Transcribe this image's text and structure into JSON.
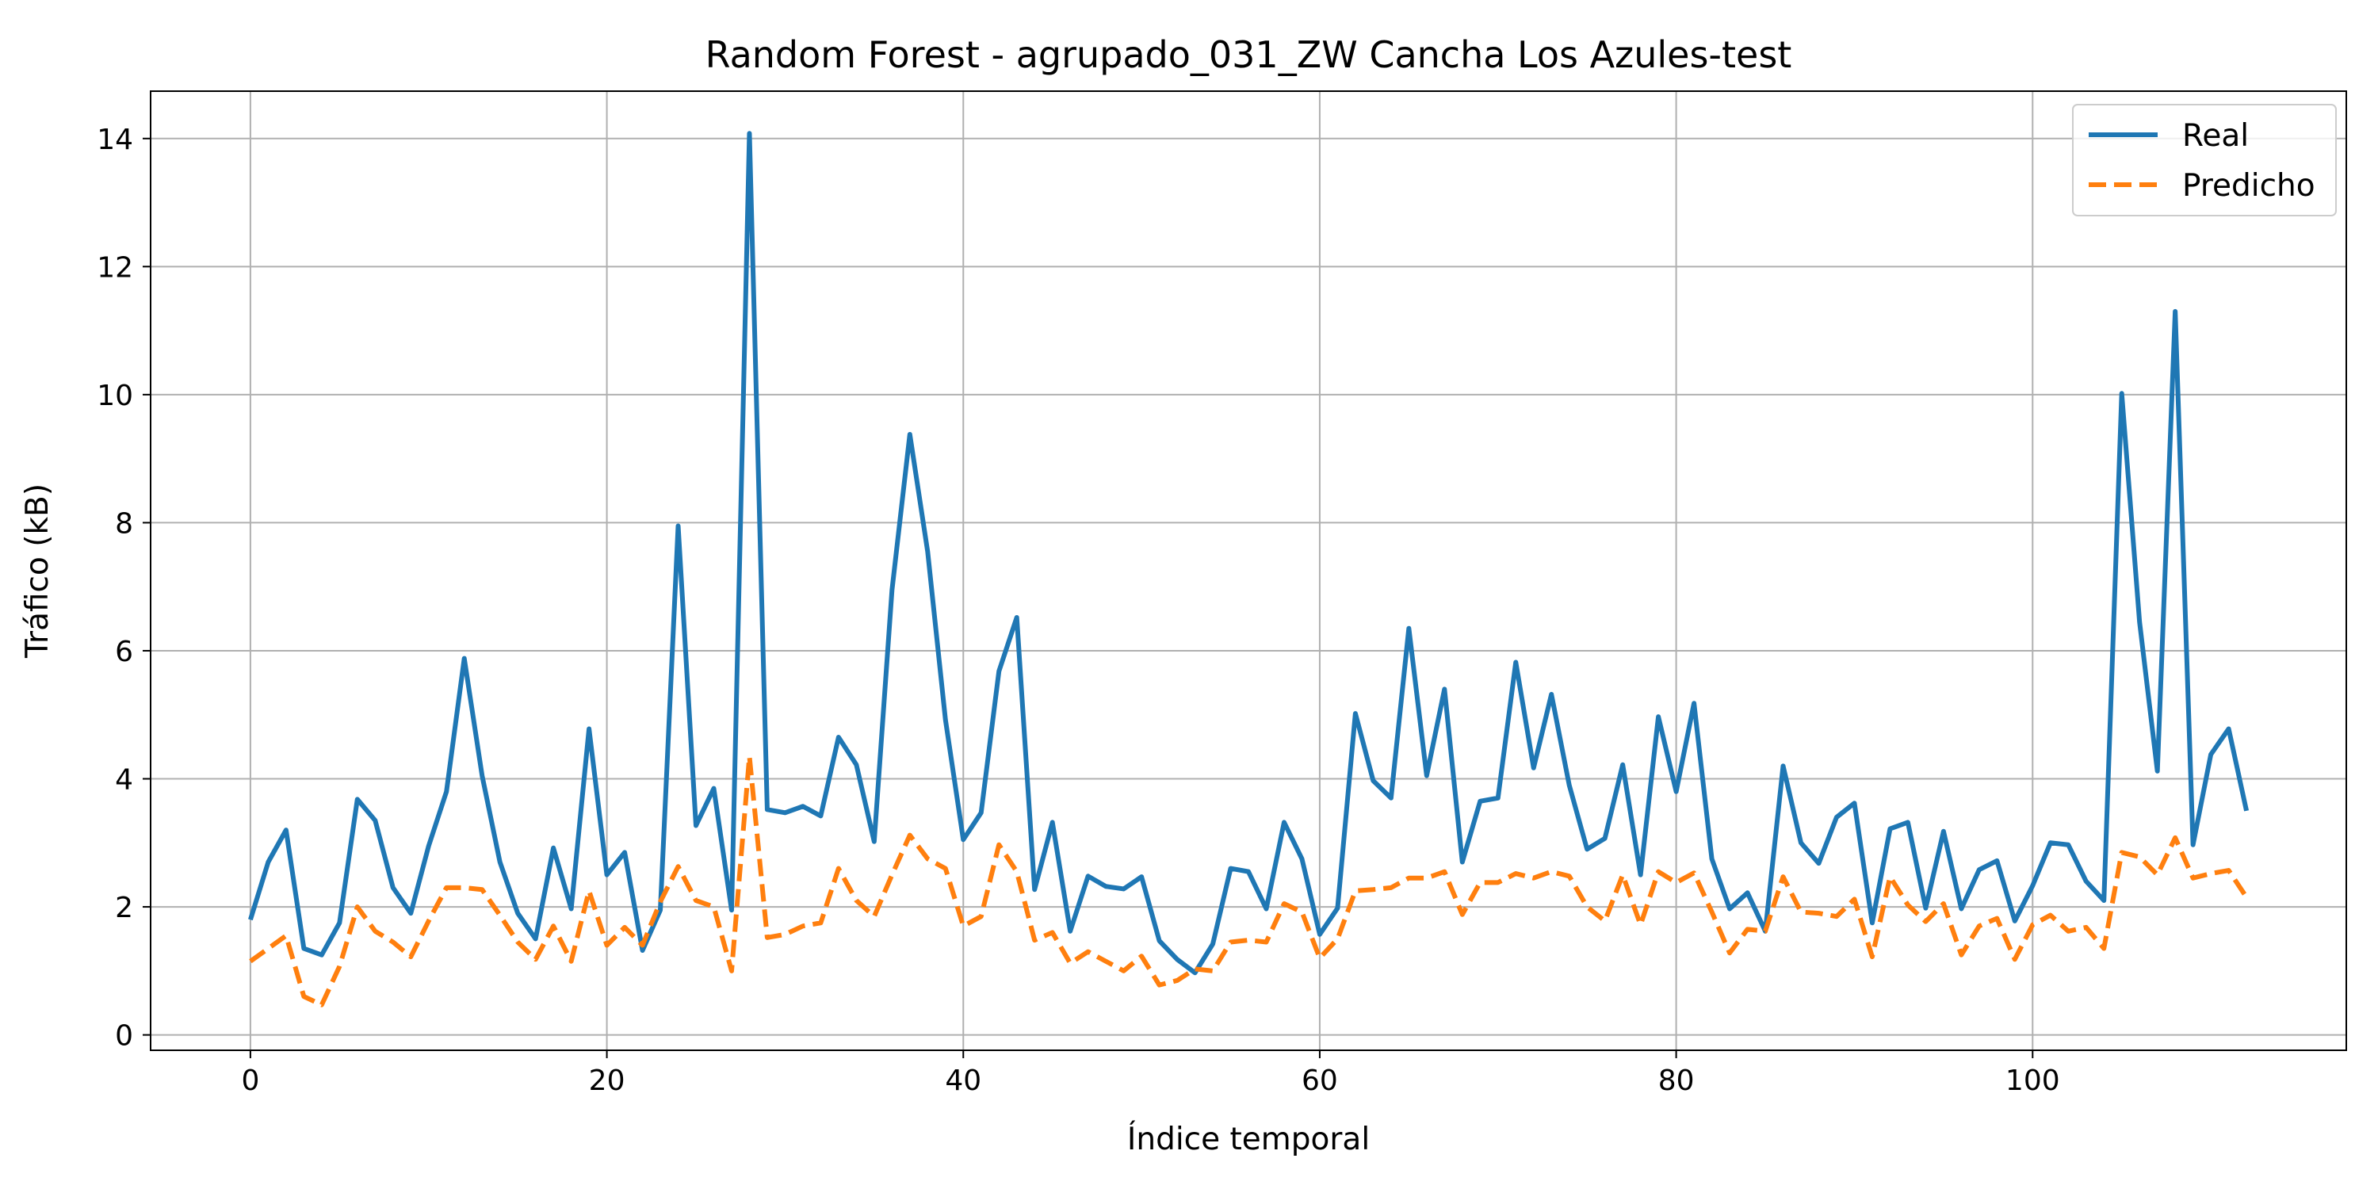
{
  "chart_data": {
    "type": "line",
    "title": "Random Forest - agrupado_031_ZW Cancha Los Azules-test",
    "xlabel": "Índice temporal",
    "ylabel": "Tráfico (kB)",
    "xlim": [
      -5.6,
      117.6
    ],
    "ylim": [
      -0.24,
      14.74
    ],
    "xticks": [
      0,
      20,
      40,
      60,
      80,
      100
    ],
    "yticks": [
      0,
      2,
      4,
      6,
      8,
      10,
      12,
      14
    ],
    "grid": true,
    "legend_position": "upper right",
    "series": [
      {
        "name": "Real",
        "color": "#1f77b4",
        "style": "solid",
        "values": [
          1.8,
          2.7,
          3.2,
          1.35,
          1.25,
          1.75,
          3.68,
          3.35,
          2.3,
          1.9,
          2.95,
          3.8,
          5.88,
          4.05,
          2.7,
          1.9,
          1.5,
          2.92,
          1.97,
          4.78,
          2.5,
          2.85,
          1.32,
          1.95,
          7.95,
          3.27,
          3.85,
          1.95,
          14.08,
          3.52,
          3.47,
          3.57,
          3.42,
          4.65,
          4.22,
          3.02,
          6.95,
          9.38,
          7.55,
          4.92,
          3.05,
          3.47,
          5.68,
          6.52,
          2.27,
          3.32,
          1.62,
          2.48,
          2.32,
          2.28,
          2.47,
          1.47,
          1.18,
          0.97,
          1.42,
          2.6,
          2.55,
          1.97,
          3.32,
          2.75,
          1.57,
          1.98,
          5.02,
          3.97,
          3.7,
          6.35,
          4.05,
          5.4,
          2.7,
          3.65,
          3.7,
          5.82,
          4.17,
          5.32,
          3.9,
          2.9,
          3.07,
          4.22,
          2.5,
          4.97,
          3.8,
          5.18,
          2.75,
          1.97,
          2.22,
          1.62,
          4.2,
          3.0,
          2.68,
          3.4,
          3.62,
          1.75,
          3.22,
          3.32,
          1.98,
          3.18,
          1.97,
          2.58,
          2.72,
          1.78,
          2.33,
          3.0,
          2.97,
          2.4,
          2.1,
          10.02,
          6.45,
          4.12,
          11.3,
          2.97,
          4.38,
          4.78,
          3.5
        ]
      },
      {
        "name": "Predicho",
        "color": "#ff7f0e",
        "style": "dashed",
        "values": [
          1.15,
          1.35,
          1.55,
          0.6,
          0.47,
          1.07,
          2.0,
          1.62,
          1.45,
          1.22,
          1.78,
          2.3,
          2.3,
          2.27,
          1.87,
          1.45,
          1.18,
          1.7,
          1.15,
          2.25,
          1.4,
          1.68,
          1.4,
          2.08,
          2.63,
          2.1,
          2.0,
          1.0,
          4.35,
          1.52,
          1.57,
          1.7,
          1.75,
          2.6,
          2.1,
          1.85,
          2.5,
          3.12,
          2.75,
          2.6,
          1.7,
          1.85,
          2.97,
          2.55,
          1.48,
          1.6,
          1.12,
          1.3,
          1.15,
          1.0,
          1.23,
          0.78,
          0.85,
          1.03,
          1.0,
          1.45,
          1.48,
          1.45,
          2.05,
          1.92,
          1.2,
          1.5,
          2.25,
          2.27,
          2.3,
          2.45,
          2.45,
          2.55,
          1.88,
          2.38,
          2.38,
          2.52,
          2.45,
          2.55,
          2.48,
          2.0,
          1.78,
          2.5,
          1.72,
          2.55,
          2.38,
          2.53,
          1.92,
          1.28,
          1.65,
          1.62,
          2.47,
          1.92,
          1.9,
          1.85,
          2.12,
          1.22,
          2.47,
          2.03,
          1.77,
          2.05,
          1.25,
          1.7,
          1.82,
          1.18,
          1.72,
          1.87,
          1.62,
          1.68,
          1.35,
          2.85,
          2.78,
          2.5,
          3.08,
          2.45,
          2.52,
          2.57,
          2.15
        ]
      }
    ]
  }
}
